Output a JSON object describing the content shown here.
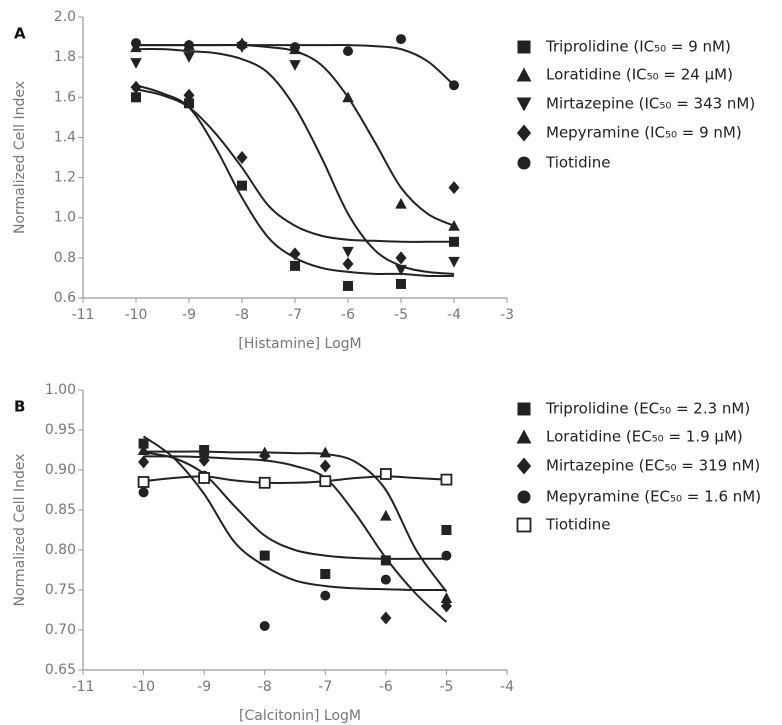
{
  "chart_data": [
    {
      "type": "scatter",
      "label": "A",
      "xlabel": "[Histamine] LogM",
      "ylabel": "Normalized Cell Index",
      "xlim": [
        -11,
        -3
      ],
      "xticks": [
        -11,
        -10,
        -9,
        -8,
        -7,
        -6,
        -5,
        -4,
        -3
      ],
      "ylim": [
        0.6,
        2.0
      ],
      "yticks": [
        0.6,
        0.8,
        {
          "value": 1,
          "label": "1.0"
        },
        1.2,
        1.4,
        1.6,
        1.8,
        {
          "value": 2,
          "label": "2.0"
        }
      ],
      "x": [
        -10,
        -9,
        -8,
        -7,
        -6,
        -5,
        -4
      ],
      "curve_x": [
        -10,
        -9.5,
        -9,
        -8.5,
        -8,
        -7.5,
        -7,
        -6.5,
        -6,
        -5.5,
        -5,
        -4.5,
        -4
      ],
      "series": [
        {
          "name": "Triprolidine (IC₅₀ = 9 nM)",
          "marker": "square",
          "color": "#222222",
          "values": [
            1.6,
            1.57,
            1.16,
            0.76,
            0.66,
            0.67,
            0.88
          ],
          "curve": [
            1.64,
            1.61,
            1.55,
            1.42,
            1.25,
            1.06,
            0.96,
            0.91,
            0.89,
            0.885,
            0.88,
            0.88,
            0.88
          ]
        },
        {
          "name": "Loratidine (IC₅₀ = 24 μM)",
          "marker": "triangle-up",
          "color": "#222222",
          "values": [
            1.85,
            1.86,
            1.87,
            1.84,
            1.6,
            1.07,
            0.96
          ],
          "curve": [
            1.86,
            1.86,
            1.86,
            1.86,
            1.86,
            1.85,
            1.83,
            1.76,
            1.6,
            1.38,
            1.15,
            1.02,
            0.96
          ]
        },
        {
          "name": "Mirtazepine (IC₅₀ = 343 nM)",
          "marker": "triangle-down",
          "color": "#222222",
          "values": [
            1.77,
            1.8,
            1.85,
            1.76,
            0.83,
            0.74,
            0.78
          ],
          "curve": [
            1.84,
            1.84,
            1.83,
            1.82,
            1.79,
            1.72,
            1.55,
            1.3,
            1.02,
            0.84,
            0.76,
            0.73,
            0.72
          ]
        },
        {
          "name": "Mepyramine (IC₅₀ = 9 nM)",
          "marker": "diamond",
          "color": "#222222",
          "values": [
            1.65,
            1.61,
            1.3,
            0.82,
            0.77,
            0.8,
            1.15
          ],
          "curve": [
            1.66,
            1.62,
            1.55,
            1.35,
            1.1,
            0.9,
            0.8,
            0.75,
            0.73,
            0.72,
            0.72,
            0.71,
            0.71
          ]
        },
        {
          "name": "Tiotidine",
          "marker": "circle",
          "color": "#222222",
          "values": [
            1.87,
            1.86,
            1.86,
            1.85,
            1.83,
            1.89,
            1.66
          ],
          "curve": [
            1.86,
            1.86,
            1.86,
            1.86,
            1.86,
            1.86,
            1.86,
            1.86,
            1.86,
            1.855,
            1.84,
            1.78,
            1.66
          ]
        }
      ]
    },
    {
      "type": "scatter",
      "label": "B",
      "xlabel": "[Calcitonin] LogM",
      "ylabel": "Normalized Cell Index",
      "xlim": [
        -11,
        -4
      ],
      "xticks": [
        -11,
        -10,
        -9,
        -8,
        -7,
        -6,
        -5,
        -4
      ],
      "ylim": [
        0.65,
        1.0
      ],
      "yticks": [
        0.65,
        {
          "value": 0.7,
          "label": "0.70"
        },
        0.75,
        {
          "value": 0.8,
          "label": "0.80"
        },
        0.85,
        {
          "value": 0.9,
          "label": "0.90"
        },
        0.95,
        {
          "value": 1,
          "label": "1.00"
        }
      ],
      "x": [
        -10,
        -9,
        -8,
        -7,
        -6,
        -5
      ],
      "curve_x": [
        -10,
        -9.5,
        -9,
        -8.5,
        -8,
        -7.5,
        -7,
        -6.5,
        -6,
        -5.5,
        -5
      ],
      "series": [
        {
          "name": "Triprolidine (EC₅₀ = 2.3 nM)",
          "marker": "square",
          "color": "#222222",
          "values": [
            0.933,
            0.925,
            0.793,
            0.77,
            0.787,
            0.825
          ],
          "curve": [
            0.922,
            0.915,
            0.895,
            0.855,
            0.818,
            0.8,
            0.793,
            0.79,
            0.789,
            0.789,
            0.789
          ]
        },
        {
          "name": "Loratidine (EC₅₀ = 1.9 μM)",
          "marker": "triangle-up",
          "color": "#222222",
          "values": [
            0.925,
            0.922,
            0.922,
            0.922,
            0.843,
            0.74
          ],
          "curve": [
            0.923,
            0.923,
            0.923,
            0.922,
            0.922,
            0.921,
            0.92,
            0.91,
            0.875,
            0.8,
            0.748
          ]
        },
        {
          "name": "Mirtazepine (EC₅₀ = 319 nM)",
          "marker": "diamond",
          "color": "#222222",
          "values": [
            0.91,
            0.912,
            0.918,
            0.905,
            0.715,
            0.73
          ],
          "curve": [
            0.917,
            0.917,
            0.916,
            0.914,
            0.912,
            0.905,
            0.89,
            0.845,
            0.79,
            0.745,
            0.71
          ]
        },
        {
          "name": "Mepyramine (EC₅₀ = 1.6 nM)",
          "marker": "circle",
          "color": "#222222",
          "values": [
            0.872,
            0.893,
            0.705,
            0.743,
            0.763,
            0.793
          ],
          "curve": [
            0.942,
            0.915,
            0.87,
            0.81,
            0.78,
            0.762,
            0.755,
            0.752,
            0.751,
            0.75,
            0.75
          ]
        },
        {
          "name": "Tiotidine",
          "marker": "open-square",
          "color": "#222222",
          "values": [
            0.885,
            0.89,
            0.884,
            0.886,
            0.895,
            0.888
          ],
          "curve": [
            0.886,
            0.89,
            0.892,
            0.887,
            0.884,
            0.884,
            0.886,
            0.89,
            0.892,
            0.89,
            0.888
          ]
        }
      ]
    }
  ]
}
